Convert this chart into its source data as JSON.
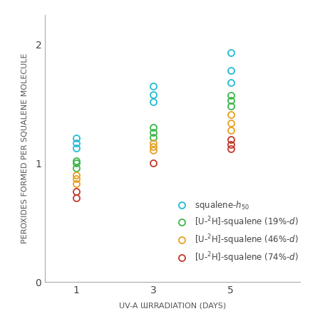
{
  "xlabel": "UV-A Irradiation (Days)",
  "ylabel": "Peroxides Formed Per Squalene Molecule",
  "xticks": [
    1,
    3,
    5
  ],
  "yticks": [
    0,
    1,
    2
  ],
  "xlim": [
    0.2,
    6.8
  ],
  "ylim": [
    0,
    2.25
  ],
  "series": [
    {
      "label_display": "squalene-$h_{50}$",
      "color": "#22bcd4",
      "points": {
        "1": [
          1.13,
          1.17,
          1.21
        ],
        "3": [
          1.52,
          1.58,
          1.65
        ],
        "5": [
          1.68,
          1.78,
          1.93
        ]
      }
    },
    {
      "label_display": "[U-$^{2}$H]-squalene (19%-$d$)",
      "color": "#3db54a",
      "points": {
        "1": [
          0.96,
          1.0,
          1.02
        ],
        "3": [
          1.22,
          1.26,
          1.3
        ],
        "5": [
          1.48,
          1.53,
          1.57
        ]
      }
    },
    {
      "label_display": "[U-$^{2}$H]-squalene (46%-$d$)",
      "color": "#e8a020",
      "points": {
        "1": [
          0.83,
          0.87,
          0.9
        ],
        "3": [
          1.11,
          1.14,
          1.17
        ],
        "5": [
          1.28,
          1.34,
          1.41
        ]
      }
    },
    {
      "label_display": "[U-$^{2}$H]-squalene (74%-$d$)",
      "color": "#c0392b",
      "points": {
        "1": [
          0.71,
          0.76
        ],
        "3": [
          1.0
        ],
        "5": [
          1.12,
          1.16,
          1.2
        ]
      }
    }
  ],
  "marker_size": 6.5,
  "marker_lw": 1.3,
  "background_color": "#ffffff"
}
